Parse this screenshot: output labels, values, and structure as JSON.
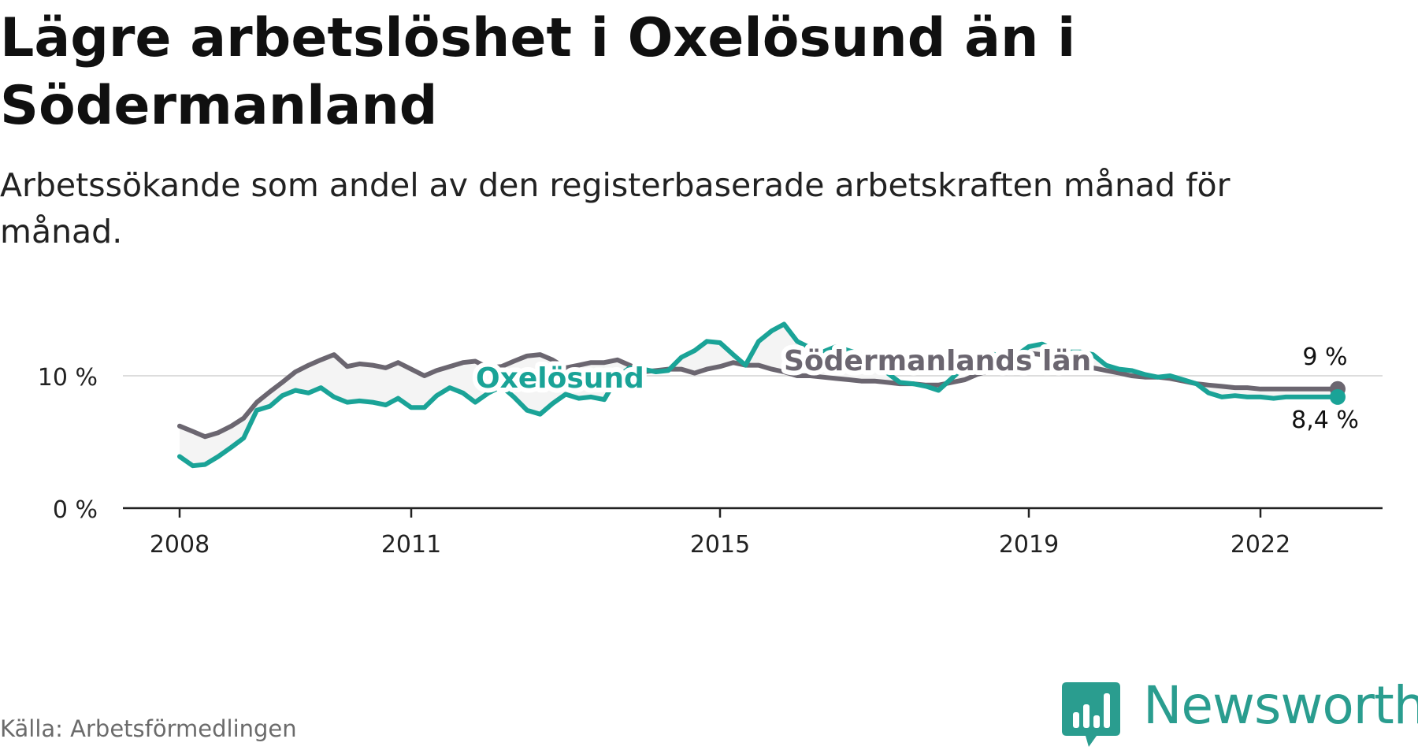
{
  "title": "Lägre arbetslöshet i Oxelösund än i Södermanland",
  "subtitle": "Arbetssökande som andel av den registerbaserade arbetskraften månad för månad.",
  "source": "Källa: Arbetsförmedlingen",
  "brand": {
    "name": "Newsworthy",
    "icon": "newsworthy-bar-chart-logo",
    "color": "#2a9d8f"
  },
  "colors": {
    "oxelosund": "#1aa397",
    "sodermanland": "#6b6670",
    "grid": "#dddddd",
    "axis": "#222222"
  },
  "chart_data": {
    "type": "line",
    "title": "Lägre arbetslöshet i Oxelösund än i Södermanland",
    "xlabel": "",
    "ylabel": "",
    "xlim": [
      2008.0,
      2023.4
    ],
    "ylim": [
      0,
      14
    ],
    "x_ticks": [
      {
        "value": 2008,
        "label": "2008"
      },
      {
        "value": 2011,
        "label": "2011"
      },
      {
        "value": 2015,
        "label": "2015"
      },
      {
        "value": 2019,
        "label": "2019"
      },
      {
        "value": 2022,
        "label": "2022"
      }
    ],
    "y_ticks": [
      {
        "value": 0,
        "label": "0 %"
      },
      {
        "value": 10,
        "label": "10 %"
      }
    ],
    "series": [
      {
        "name": "Oxelösund",
        "label": "Oxelösund",
        "color": "#1aa397",
        "end_label": "8,4 %",
        "x": [
          2008.0,
          2008.17,
          2008.33,
          2008.5,
          2008.67,
          2008.83,
          2009.0,
          2009.17,
          2009.33,
          2009.5,
          2009.67,
          2009.83,
          2010.0,
          2010.17,
          2010.33,
          2010.5,
          2010.67,
          2010.83,
          2011.0,
          2011.17,
          2011.33,
          2011.5,
          2011.67,
          2011.83,
          2012.0,
          2012.17,
          2012.33,
          2012.5,
          2012.67,
          2012.83,
          2013.0,
          2013.17,
          2013.33,
          2013.5,
          2013.67,
          2013.83,
          2014.0,
          2014.17,
          2014.33,
          2014.5,
          2014.67,
          2014.83,
          2015.0,
          2015.17,
          2015.33,
          2015.5,
          2015.67,
          2015.83,
          2016.0,
          2016.17,
          2016.33,
          2016.5,
          2016.67,
          2016.83,
          2017.0,
          2017.17,
          2017.33,
          2017.5,
          2017.67,
          2017.83,
          2018.0,
          2018.17,
          2018.33,
          2018.5,
          2018.67,
          2018.83,
          2019.0,
          2019.17,
          2019.33,
          2019.5,
          2019.67,
          2019.83,
          2020.0,
          2020.17,
          2020.33,
          2020.5,
          2020.67,
          2020.83,
          2021.0,
          2021.17,
          2021.33,
          2021.5,
          2021.67,
          2021.83,
          2022.0,
          2022.17,
          2022.33,
          2022.5,
          2022.67,
          2022.83,
          2023.0
        ],
        "y": [
          3.9,
          3.2,
          3.3,
          3.9,
          4.6,
          5.3,
          7.4,
          7.7,
          8.5,
          8.9,
          8.7,
          9.1,
          8.4,
          8.0,
          8.1,
          8.0,
          7.8,
          8.3,
          7.6,
          7.6,
          8.5,
          9.1,
          8.7,
          8.0,
          8.7,
          9.2,
          8.4,
          7.4,
          7.1,
          7.9,
          8.6,
          8.3,
          8.4,
          8.2,
          9.9,
          10.6,
          10.5,
          10.3,
          10.4,
          11.4,
          11.9,
          12.6,
          12.5,
          11.6,
          10.8,
          12.6,
          13.4,
          13.9,
          12.6,
          12.1,
          11.8,
          12.2,
          11.9,
          11.6,
          11.1,
          10.2,
          9.5,
          9.4,
          9.2,
          8.9,
          9.8,
          10.7,
          11.5,
          11.7,
          11.4,
          11.5,
          12.2,
          12.4,
          11.9,
          11.8,
          11.8,
          11.6,
          10.8,
          10.5,
          10.4,
          10.1,
          9.9,
          10.0,
          9.7,
          9.4,
          8.7,
          8.4,
          8.5,
          8.4,
          8.4,
          8.3,
          8.4,
          8.4,
          8.4,
          8.4,
          8.4
        ]
      },
      {
        "name": "Södermanlands län",
        "label": "Södermanlands län",
        "color": "#6b6670",
        "end_label": "9 %",
        "x": [
          2008.0,
          2008.17,
          2008.33,
          2008.5,
          2008.67,
          2008.83,
          2009.0,
          2009.17,
          2009.33,
          2009.5,
          2009.67,
          2009.83,
          2010.0,
          2010.17,
          2010.33,
          2010.5,
          2010.67,
          2010.83,
          2011.0,
          2011.17,
          2011.33,
          2011.5,
          2011.67,
          2011.83,
          2012.0,
          2012.17,
          2012.33,
          2012.5,
          2012.67,
          2012.83,
          2013.0,
          2013.17,
          2013.33,
          2013.5,
          2013.67,
          2013.83,
          2014.0,
          2014.17,
          2014.33,
          2014.5,
          2014.67,
          2014.83,
          2015.0,
          2015.17,
          2015.33,
          2015.5,
          2015.67,
          2015.83,
          2016.0,
          2016.17,
          2016.33,
          2016.5,
          2016.67,
          2016.83,
          2017.0,
          2017.17,
          2017.33,
          2017.5,
          2017.67,
          2017.83,
          2018.0,
          2018.17,
          2018.33,
          2018.5,
          2018.67,
          2018.83,
          2019.0,
          2019.17,
          2019.33,
          2019.5,
          2019.67,
          2019.83,
          2020.0,
          2020.17,
          2020.33,
          2020.5,
          2020.67,
          2020.83,
          2021.0,
          2021.17,
          2021.33,
          2021.5,
          2021.67,
          2021.83,
          2022.0,
          2022.17,
          2022.33,
          2022.5,
          2022.67,
          2022.83,
          2023.0
        ],
        "y": [
          6.2,
          5.8,
          5.4,
          5.7,
          6.2,
          6.8,
          8.0,
          8.8,
          9.5,
          10.3,
          10.8,
          11.2,
          11.6,
          10.7,
          10.9,
          10.8,
          10.6,
          11.0,
          10.5,
          10.0,
          10.4,
          10.7,
          11.0,
          11.1,
          10.6,
          10.7,
          11.1,
          11.5,
          11.6,
          11.2,
          10.6,
          10.8,
          11.0,
          11.0,
          11.2,
          10.8,
          10.3,
          10.4,
          10.5,
          10.5,
          10.2,
          10.5,
          10.7,
          11.0,
          10.8,
          10.8,
          10.5,
          10.3,
          10.0,
          10.0,
          9.9,
          9.8,
          9.7,
          9.6,
          9.6,
          9.5,
          9.4,
          9.4,
          9.3,
          9.3,
          9.5,
          9.7,
          10.1,
          10.4,
          10.7,
          11.2,
          11.7,
          11.6,
          11.3,
          11.1,
          10.9,
          10.6,
          10.4,
          10.2,
          10.0,
          9.9,
          9.9,
          9.8,
          9.6,
          9.4,
          9.3,
          9.2,
          9.1,
          9.1,
          9.0,
          9.0,
          9.0,
          9.0,
          9.0,
          9.0,
          9.0
        ]
      }
    ]
  }
}
